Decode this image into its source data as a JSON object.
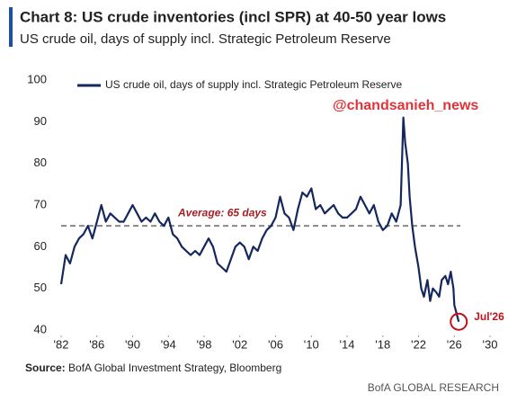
{
  "chart_data": {
    "type": "line",
    "title": "Chart 8: US crude inventories (incl SPR) at 40-50 year lows",
    "subtitle": "US crude oil, days of supply incl. Strategic Petroleum Reserve",
    "x": [
      1982.0,
      1982.5,
      1983.0,
      1983.5,
      1984.0,
      1984.5,
      1985.0,
      1985.5,
      1986.0,
      1986.5,
      1987.0,
      1987.5,
      1988.0,
      1988.5,
      1989.0,
      1989.5,
      1990.0,
      1990.5,
      1991.0,
      1991.5,
      1992.0,
      1992.5,
      1993.0,
      1993.5,
      1994.0,
      1994.5,
      1995.0,
      1995.5,
      1996.0,
      1996.5,
      1997.0,
      1997.5,
      1998.0,
      1998.5,
      1999.0,
      1999.5,
      2000.0,
      2000.5,
      2001.0,
      2001.5,
      2002.0,
      2002.5,
      2003.0,
      2003.5,
      2004.0,
      2004.5,
      2005.0,
      2005.5,
      2006.0,
      2006.5,
      2007.0,
      2007.5,
      2008.0,
      2008.5,
      2009.0,
      2009.5,
      2010.0,
      2010.5,
      2011.0,
      2011.5,
      2012.0,
      2012.5,
      2013.0,
      2013.5,
      2014.0,
      2014.5,
      2015.0,
      2015.5,
      2016.0,
      2016.5,
      2017.0,
      2017.5,
      2018.0,
      2018.5,
      2019.0,
      2019.5,
      2020.0,
      2020.3,
      2020.5,
      2020.8,
      2021.0,
      2021.3,
      2021.6,
      2022.0,
      2022.3,
      2022.6,
      2023.0,
      2023.3,
      2023.6,
      2024.0,
      2024.3,
      2024.6,
      2025.0,
      2025.3,
      2025.6,
      2025.9,
      2026.0,
      2026.5
    ],
    "series": [
      {
        "name": "US crude oil, days of supply incl. Strategic Petroleum Reserve",
        "color": "#14275e",
        "values": [
          51,
          58,
          56,
          60,
          62,
          63,
          65,
          62,
          66,
          70,
          66,
          68,
          67,
          66,
          66,
          68,
          70,
          68,
          66,
          67,
          66,
          68,
          66,
          65,
          67,
          63,
          62,
          60,
          59,
          58,
          59,
          58,
          60,
          62,
          60,
          56,
          55,
          54,
          57,
          60,
          61,
          60,
          57,
          60,
          59,
          62,
          64,
          65,
          67,
          72,
          68,
          67,
          64,
          69,
          73,
          72,
          74,
          69,
          70,
          68,
          69,
          70,
          68,
          67,
          67,
          68,
          69,
          72,
          70,
          68,
          70,
          66,
          64,
          65,
          68,
          66,
          70,
          91,
          85,
          80,
          72,
          65,
          60,
          55,
          50,
          48,
          52,
          47,
          50,
          49,
          48,
          52,
          53,
          51,
          54,
          50,
          46,
          42
        ]
      }
    ],
    "xlim": [
      1982,
      2030
    ],
    "xticks": [
      {
        "value": 1982,
        "label": "'82"
      },
      {
        "value": 1986,
        "label": "'86"
      },
      {
        "value": 1990,
        "label": "'90"
      },
      {
        "value": 1994,
        "label": "'94"
      },
      {
        "value": 1998,
        "label": "'98"
      },
      {
        "value": 2002,
        "label": "'02"
      },
      {
        "value": 2006,
        "label": "'06"
      },
      {
        "value": 2010,
        "label": "'10"
      },
      {
        "value": 2014,
        "label": "'14"
      },
      {
        "value": 2018,
        "label": "'18"
      },
      {
        "value": 2022,
        "label": "'22"
      },
      {
        "value": 2026,
        "label": "'26"
      },
      {
        "value": 2030,
        "label": "'30"
      }
    ],
    "ylim": [
      40,
      100
    ],
    "yticks": [
      40,
      50,
      60,
      70,
      80,
      90,
      100
    ],
    "average": {
      "value": 65,
      "label": "Average: 65 days",
      "color": "#888888",
      "label_color": "#a31f24"
    },
    "callout": {
      "label": "Jul'26",
      "color": "#c0121b"
    },
    "watermark": "@chandsanieh_news",
    "source": {
      "label": "Source:",
      "text": "BofA Global Investment Strategy, Bloomberg"
    },
    "footer": "BofA GLOBAL RESEARCH"
  }
}
